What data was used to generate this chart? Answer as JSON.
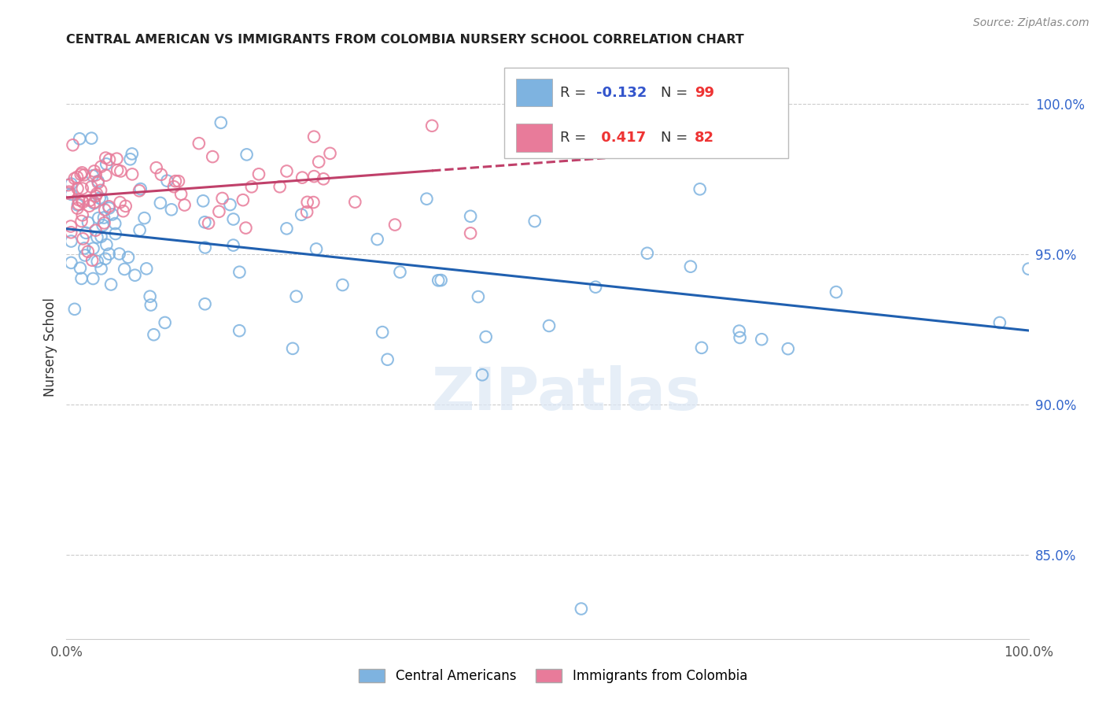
{
  "title": "CENTRAL AMERICAN VS IMMIGRANTS FROM COLOMBIA NURSERY SCHOOL CORRELATION CHART",
  "source": "Source: ZipAtlas.com",
  "ylabel": "Nursery School",
  "y_tick_labels": [
    "85.0%",
    "90.0%",
    "95.0%",
    "100.0%"
  ],
  "y_tick_values": [
    0.85,
    0.9,
    0.95,
    1.0
  ],
  "x_range": [
    0.0,
    1.0
  ],
  "y_range": [
    0.822,
    1.016
  ],
  "blue_R": -0.132,
  "blue_N": 99,
  "pink_R": 0.417,
  "pink_N": 82,
  "blue_color": "#7eb3e0",
  "pink_color": "#e87b9a",
  "blue_line_color": "#2060b0",
  "pink_line_color": "#c0406a",
  "legend_blue_label": "Central Americans",
  "legend_pink_label": "Immigrants from Colombia",
  "grid_color": "#cccccc",
  "bottom_spine_color": "#cccccc"
}
